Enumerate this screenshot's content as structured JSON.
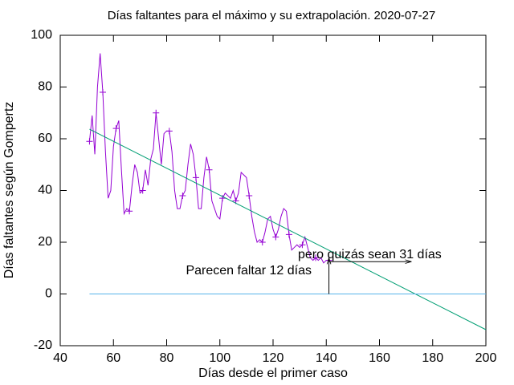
{
  "chart_data": {
    "type": "line",
    "title": "Días faltantes para el máximo y su extrapolación. 2020-07-27",
    "x_label": "Días desde el primer caso",
    "y_label": "Días faltantes según Gompertz",
    "xlim": [
      40,
      200
    ],
    "xticks": [
      40,
      60,
      80,
      100,
      120,
      140,
      160,
      180,
      200
    ],
    "ylim": [
      -20,
      100
    ],
    "yticks": [
      -20,
      0,
      20,
      40,
      60,
      80,
      100
    ],
    "grid": false,
    "series": [
      {
        "color": "#9400d3",
        "markers": true,
        "x": [
          51,
          52,
          53,
          54,
          55,
          56,
          57,
          58,
          59,
          60,
          61,
          62,
          63,
          64,
          65,
          66,
          67,
          68,
          69,
          70,
          71,
          72,
          73,
          74,
          75,
          76,
          77,
          78,
          79,
          80,
          81,
          82,
          83,
          84,
          85,
          86,
          87,
          88,
          89,
          90,
          91,
          92,
          93,
          94,
          95,
          96,
          97,
          98,
          99,
          100,
          101,
          102,
          103,
          104,
          105,
          106,
          107,
          108,
          109,
          110,
          111,
          112,
          113,
          114,
          115,
          116,
          117,
          118,
          119,
          120,
          121,
          122,
          123,
          124,
          125,
          126,
          127,
          128,
          129,
          130,
          131,
          132,
          133,
          134,
          135,
          136,
          137,
          138,
          139,
          140,
          141
        ],
        "values": [
          59,
          69,
          54,
          80,
          93,
          78,
          55,
          37,
          40,
          57,
          64,
          67,
          48,
          31,
          33,
          32,
          42,
          50,
          47,
          39,
          40,
          48,
          42,
          52,
          56,
          70,
          60,
          50,
          62,
          63,
          63,
          55,
          40,
          33,
          33,
          38,
          40,
          50,
          58,
          54,
          45,
          33,
          33,
          45,
          53,
          48,
          36,
          33,
          30,
          29,
          37,
          39,
          38,
          37,
          40,
          36,
          39,
          47,
          46,
          45,
          38,
          30,
          24,
          20,
          21,
          20,
          24,
          29,
          30,
          25,
          22,
          25,
          30,
          33,
          32,
          23,
          17,
          18,
          19,
          18,
          19,
          22,
          18,
          14,
          13,
          14,
          13,
          14,
          12,
          13,
          13
        ]
      },
      {
        "color": "#009e73",
        "markers": false,
        "x": [
          51,
          200
        ],
        "values": [
          63.7,
          -13.8
        ]
      },
      {
        "color": "#56b4e9",
        "markers": false,
        "x": [
          51,
          200
        ],
        "values": [
          0,
          0
        ]
      }
    ],
    "annotations": [
      {
        "text": "Parecen faltar 12 días",
        "arrow_x": [
          141,
          141
        ],
        "arrow_y": [
          0,
          14
        ]
      },
      {
        "text": "pero quizás sean 31 días",
        "arrow_x": [
          141,
          172
        ],
        "arrow_y": [
          12.5,
          12.5
        ]
      }
    ]
  }
}
